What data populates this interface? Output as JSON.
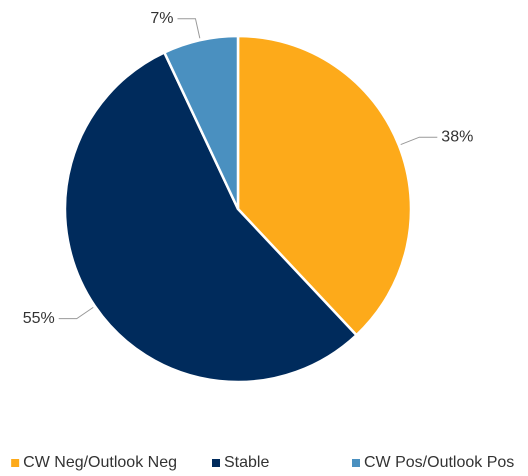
{
  "chart_data": {
    "type": "pie",
    "series": [
      {
        "name": "CW Neg/Outlook Neg",
        "color": "#fdaa1a",
        "values": [
          38
        ]
      },
      {
        "name": "Stable",
        "color": "#002b5c",
        "values": [
          55
        ]
      },
      {
        "name": "CW Pos/Outlook Pos",
        "color": "#4a90c0",
        "values": [
          7
        ]
      }
    ],
    "value_labels": [
      "38%",
      "55%",
      "7%"
    ],
    "legend": "bottom"
  }
}
